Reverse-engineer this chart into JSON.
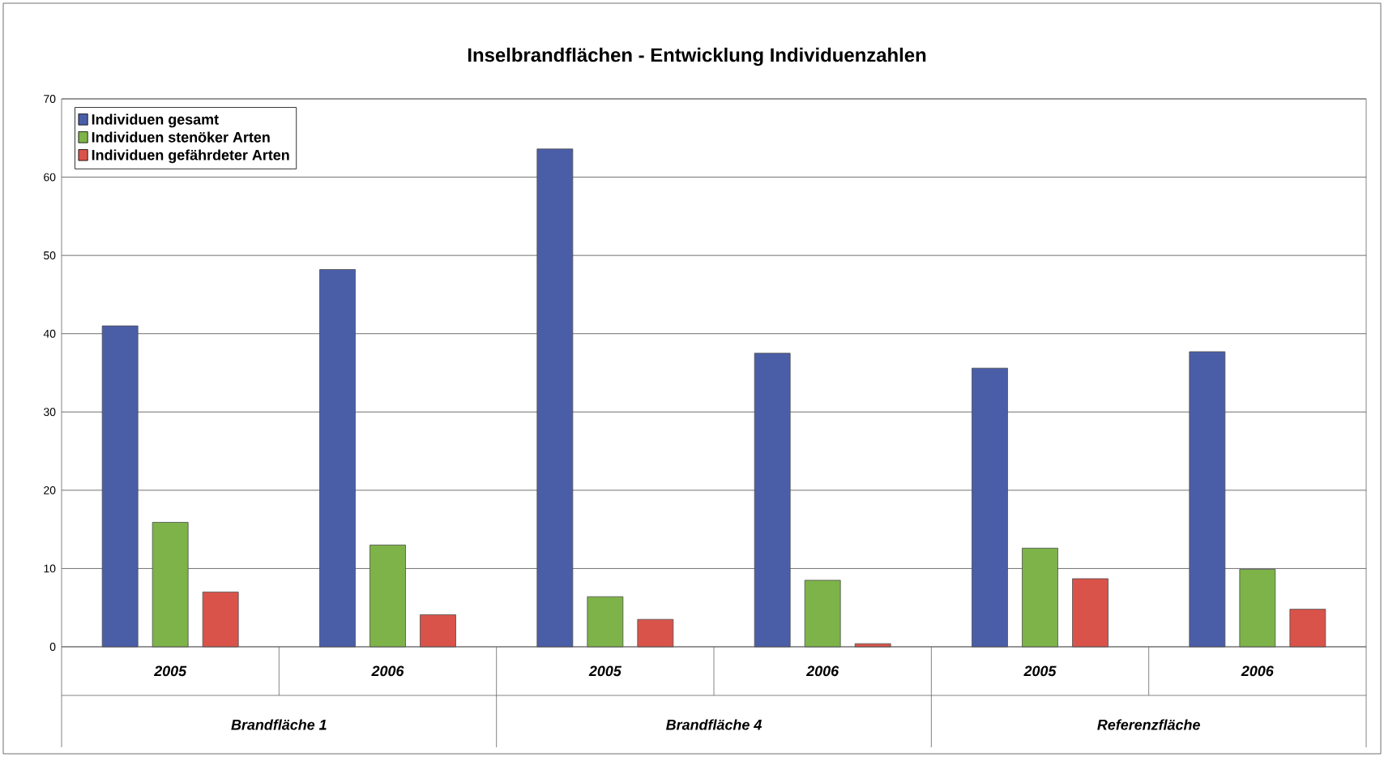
{
  "chart_data": {
    "type": "bar",
    "title": "Inselbrandflächen - Entwicklung Individuenzahlen",
    "categories": [
      "2005",
      "2006",
      "2005",
      "2006",
      "2005",
      "2006"
    ],
    "series": [
      {
        "name": "Individuen gesamt",
        "color": "#4a5ea8",
        "values": [
          41,
          48.2,
          63.6,
          37.5,
          35.6,
          37.7
        ]
      },
      {
        "name": "Individuen stenöker Arten",
        "color": "#7db348",
        "values": [
          15.9,
          13,
          6.4,
          8.5,
          12.6,
          9.9
        ]
      },
      {
        "name": "Individuen gefährdeter Arten",
        "color": "#d9534a",
        "values": [
          7,
          4.1,
          3.5,
          0.4,
          8.7,
          4.8
        ]
      }
    ],
    "annotations": [
      "Brandfläche 1",
      "Brandfläche 4",
      "Referenzfläche"
    ],
    "ylim": [
      0,
      70
    ],
    "yticks": [
      0,
      10,
      20,
      30,
      40,
      50,
      60,
      70
    ],
    "grid": "y",
    "legend": "top left"
  }
}
